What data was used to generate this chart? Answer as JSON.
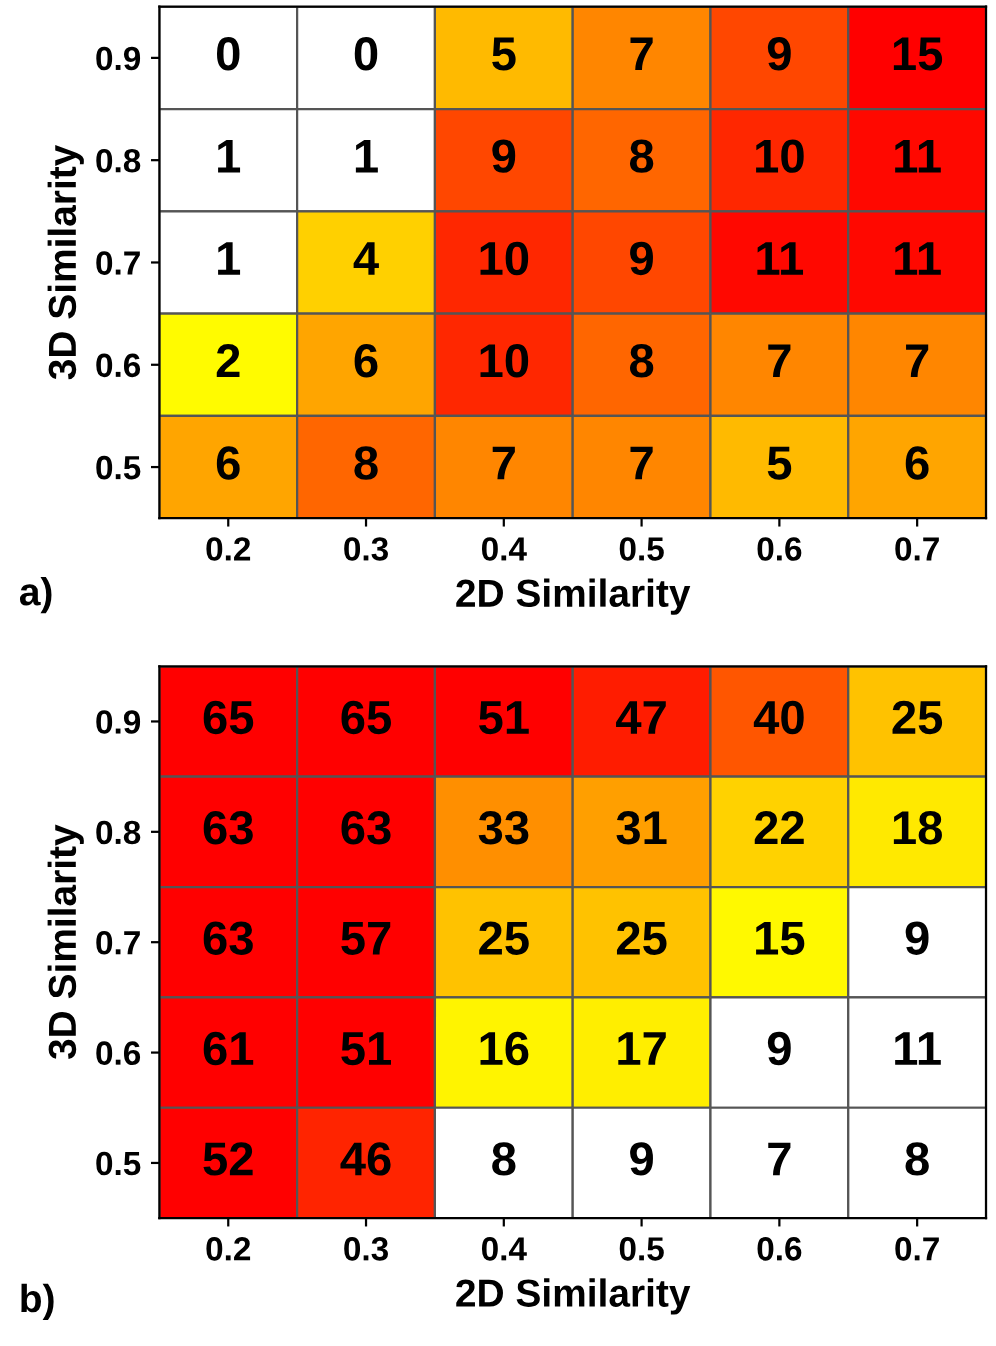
{
  "chart_data": [
    {
      "type": "heatmap",
      "xlabel": "2D Similarity",
      "ylabel": "3D Similarity",
      "annotations": [
        "a)"
      ],
      "categories": [
        "0.2",
        "0.3",
        "0.4",
        "0.5",
        "0.6",
        "0.7"
      ],
      "y_categories": [
        "0.9",
        "0.8",
        "0.7",
        "0.6",
        "0.5"
      ],
      "cells": [
        [
          0,
          0,
          5,
          7,
          9,
          15
        ],
        [
          1,
          1,
          9,
          8,
          10,
          11
        ],
        [
          1,
          4,
          10,
          9,
          11,
          11
        ],
        [
          2,
          6,
          10,
          8,
          7,
          7
        ],
        [
          6,
          8,
          7,
          7,
          5,
          6
        ]
      ],
      "data_labels": true
    },
    {
      "type": "heatmap",
      "xlabel": "2D Similarity",
      "ylabel": "3D Similarity",
      "annotations": [
        "b)"
      ],
      "categories": [
        "0.2",
        "0.3",
        "0.4",
        "0.5",
        "0.6",
        "0.7"
      ],
      "y_categories": [
        "0.9",
        "0.8",
        "0.7",
        "0.6",
        "0.5"
      ],
      "cells": [
        [
          65,
          65,
          51,
          47,
          40,
          25
        ],
        [
          63,
          63,
          33,
          31,
          22,
          18
        ],
        [
          63,
          57,
          25,
          25,
          15,
          9
        ],
        [
          61,
          51,
          16,
          17,
          9,
          11
        ],
        [
          52,
          46,
          8,
          9,
          7,
          8
        ]
      ],
      "data_labels": true
    }
  ]
}
